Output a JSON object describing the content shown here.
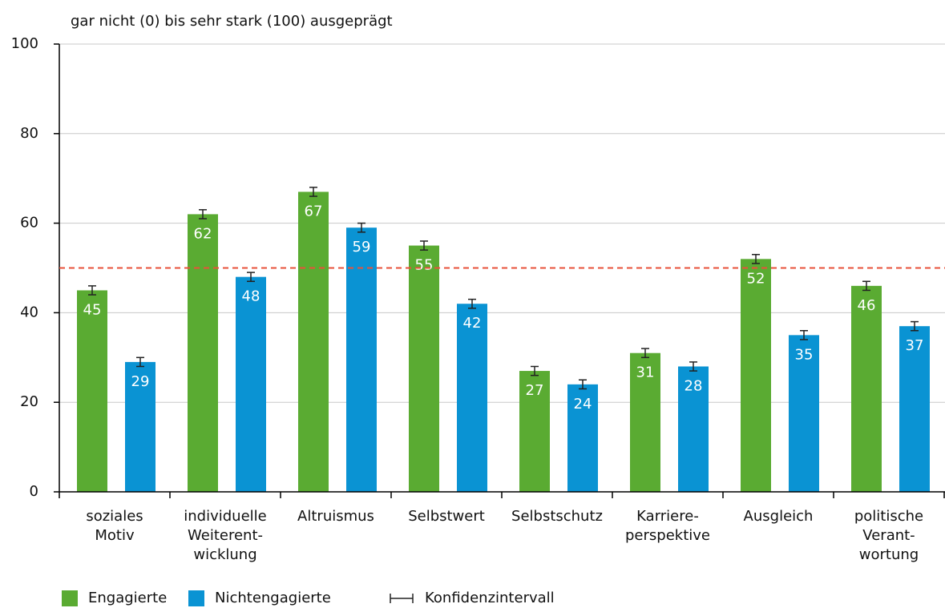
{
  "chart_data": {
    "type": "bar",
    "subtitle": "gar nicht (0) bis sehr stark (100) ausgeprägt",
    "categories": [
      [
        "soziales",
        "Motiv"
      ],
      [
        "individuelle",
        "Weiterent-",
        "wicklung"
      ],
      [
        "Altruismus"
      ],
      [
        "Selbstwert"
      ],
      [
        "Selbstschutz"
      ],
      [
        "Karriere-",
        "perspektive"
      ],
      [
        "Ausgleich"
      ],
      [
        "politische",
        "Verant-",
        "wortung"
      ]
    ],
    "series": [
      {
        "name": "Engagierte",
        "color": "#5aab32",
        "values": [
          45,
          62,
          67,
          55,
          27,
          31,
          52,
          46
        ],
        "errors": [
          1,
          1,
          1,
          1,
          1,
          1,
          1,
          1
        ]
      },
      {
        "name": "Nichtengagierte",
        "color": "#0a93d3",
        "values": [
          29,
          48,
          59,
          42,
          24,
          28,
          35,
          37
        ],
        "errors": [
          1,
          1,
          1,
          1,
          1,
          1,
          1,
          1
        ]
      }
    ],
    "error_label": "Konfidenzintervall",
    "reference_line": {
      "value": 50,
      "color": "#e8513a"
    },
    "ylim": [
      0,
      100
    ],
    "yticks": [
      0,
      20,
      40,
      60,
      80,
      100
    ],
    "grid": true
  }
}
